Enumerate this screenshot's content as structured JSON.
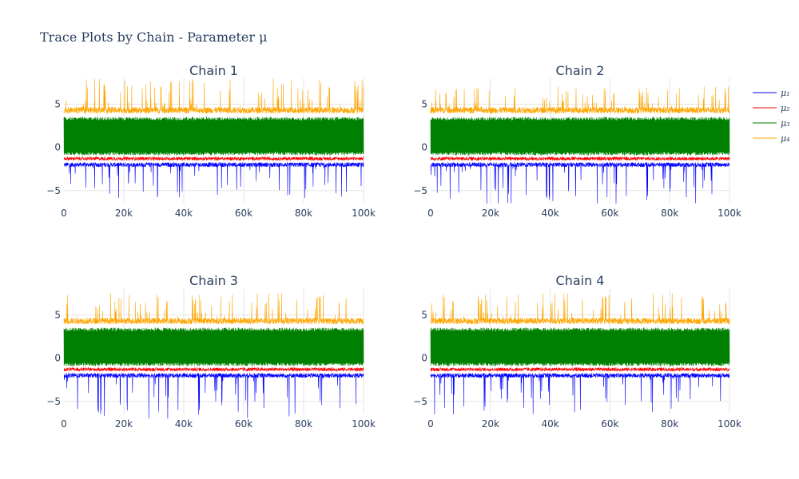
{
  "chart_data": {
    "type": "line",
    "title": "Trace Plots by Chain - Parameter μ",
    "xlim": [
      0,
      100000
    ],
    "ylim": [
      -6.5,
      8
    ],
    "x_ticks": [
      0,
      20000,
      40000,
      60000,
      80000,
      100000
    ],
    "x_tick_labels": [
      "0",
      "20k",
      "40k",
      "60k",
      "80k",
      "100k"
    ],
    "y_ticks": [
      -5,
      0,
      5
    ],
    "y_tick_labels": [
      "−5",
      "0",
      "5"
    ],
    "grid": true,
    "legend_placement": "top-right",
    "legend": [
      {
        "label": "μ₁",
        "color": "#0000ff"
      },
      {
        "label": "μ₂",
        "color": "#ff0000"
      },
      {
        "label": "μ₃",
        "color": "#008000"
      },
      {
        "label": "μ₄",
        "color": "#ffa500"
      }
    ],
    "panels": [
      {
        "title": "Chain 1",
        "series": [
          {
            "name": "μ₁",
            "color": "#0000ff",
            "center": -2.0,
            "spread": 0.5,
            "min": -6.0,
            "max": -1.2
          },
          {
            "name": "μ₂",
            "color": "#ff0000",
            "center": -1.3,
            "spread": 0.4,
            "min": -2.0,
            "max": -0.5
          },
          {
            "name": "μ₃",
            "color": "#008000",
            "center": 1.5,
            "spread": 1.9,
            "min": -0.9,
            "max": 3.5
          },
          {
            "name": "μ₄",
            "color": "#ffa500",
            "center": 4.3,
            "spread": 0.7,
            "min": 3.2,
            "max": 8.0
          }
        ]
      },
      {
        "title": "Chain 2",
        "series": [
          {
            "name": "μ₁",
            "color": "#0000ff",
            "center": -2.0,
            "spread": 0.5,
            "min": -6.5,
            "max": -1.2
          },
          {
            "name": "μ₂",
            "color": "#ff0000",
            "center": -1.3,
            "spread": 0.4,
            "min": -2.0,
            "max": -0.5
          },
          {
            "name": "μ₃",
            "color": "#008000",
            "center": 1.5,
            "spread": 1.9,
            "min": -0.9,
            "max": 3.5
          },
          {
            "name": "μ₄",
            "color": "#ffa500",
            "center": 4.3,
            "spread": 0.7,
            "min": 3.2,
            "max": 7.0
          }
        ]
      },
      {
        "title": "Chain 3",
        "series": [
          {
            "name": "μ₁",
            "color": "#0000ff",
            "center": -2.0,
            "spread": 0.5,
            "min": -7.0,
            "max": -1.2
          },
          {
            "name": "μ₂",
            "color": "#ff0000",
            "center": -1.3,
            "spread": 0.4,
            "min": -2.0,
            "max": -0.5
          },
          {
            "name": "μ₃",
            "color": "#008000",
            "center": 1.5,
            "spread": 1.9,
            "min": -0.9,
            "max": 3.5
          },
          {
            "name": "μ₄",
            "color": "#ffa500",
            "center": 4.3,
            "spread": 0.7,
            "min": 3.2,
            "max": 7.5
          }
        ]
      },
      {
        "title": "Chain 4",
        "series": [
          {
            "name": "μ₁",
            "color": "#0000ff",
            "center": -2.0,
            "spread": 0.5,
            "min": -6.5,
            "max": -1.2
          },
          {
            "name": "μ₂",
            "color": "#ff0000",
            "center": -1.3,
            "spread": 0.4,
            "min": -2.0,
            "max": -0.5
          },
          {
            "name": "μ₃",
            "color": "#008000",
            "center": 1.5,
            "spread": 1.9,
            "min": -0.9,
            "max": 3.5
          },
          {
            "name": "μ₄",
            "color": "#ffa500",
            "center": 4.3,
            "spread": 0.7,
            "min": 3.2,
            "max": 7.5
          }
        ]
      }
    ]
  }
}
